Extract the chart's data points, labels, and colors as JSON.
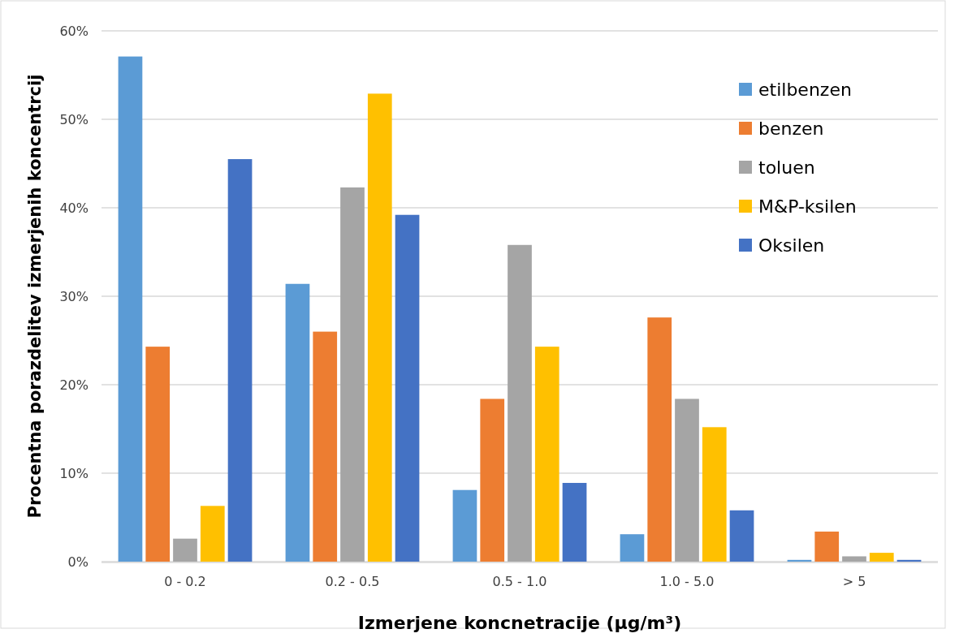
{
  "chart_data": {
    "type": "bar",
    "xlabel": "Izmerjene koncnetracije (µg/m³)",
    "ylabel": "Procentna porazdelitev izmerjenih koncentrcij",
    "categories": [
      "0 - 0.2",
      "0.2 - 0.5",
      "0.5 - 1.0",
      "1.0 - 5.0",
      "> 5"
    ],
    "series": [
      {
        "name": "etilbenzen",
        "color": "#5b9bd5",
        "values": [
          57.1,
          31.4,
          8.1,
          3.1,
          0.2
        ]
      },
      {
        "name": "benzen",
        "color": "#ed7d31",
        "values": [
          24.3,
          26.0,
          18.4,
          27.6,
          3.4
        ]
      },
      {
        "name": "toluen",
        "color": "#a5a5a5",
        "values": [
          2.6,
          42.3,
          35.8,
          18.4,
          0.6
        ]
      },
      {
        "name": "M&P-ksilen",
        "color": "#ffc000",
        "values": [
          6.3,
          52.9,
          24.3,
          15.2,
          1.0
        ]
      },
      {
        "name": "Oksilen",
        "color": "#4472c4",
        "values": [
          45.5,
          39.2,
          8.9,
          5.8,
          0.2
        ]
      }
    ],
    "ylim": [
      0,
      60
    ],
    "yticks": [
      {
        "value": 0,
        "label": "0%"
      },
      {
        "value": 10,
        "label": "10%"
      },
      {
        "value": 20,
        "label": "20%"
      },
      {
        "value": 30,
        "label": "30%"
      },
      {
        "value": 40,
        "label": "40%"
      },
      {
        "value": 50,
        "label": "50%"
      },
      {
        "value": 60,
        "label": "60%"
      }
    ],
    "grid": "y",
    "legend": "top right"
  }
}
